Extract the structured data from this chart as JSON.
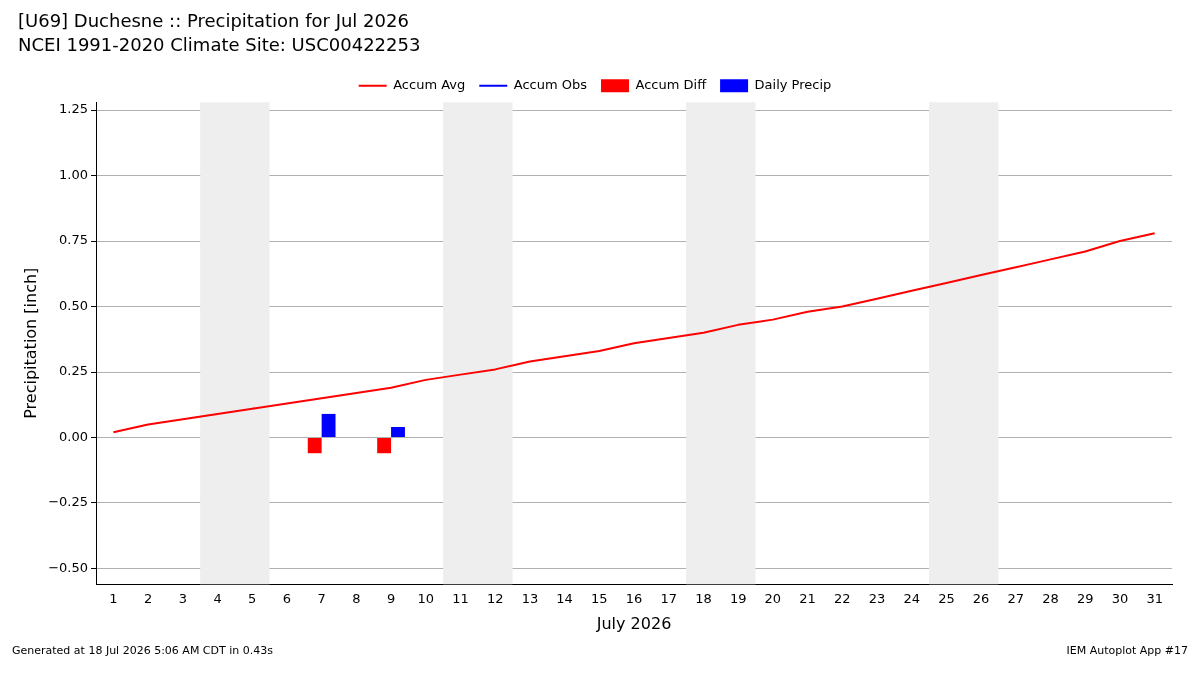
{
  "chart_data": {
    "type": "line",
    "title": "[U69] Duchesne :: Precipitation for Jul 2026",
    "subtitle": "NCEI 1991-2020 Climate Site: USC00422253",
    "xlabel": "July 2026",
    "ylabel": "Precipitation [inch]",
    "x": [
      1,
      2,
      3,
      4,
      5,
      6,
      7,
      8,
      9,
      10,
      11,
      12,
      13,
      14,
      15,
      16,
      17,
      18,
      19,
      20,
      21,
      22,
      23,
      24,
      25,
      26,
      27,
      28,
      29,
      30,
      31
    ],
    "series": [
      {
        "name": "Accum Avg",
        "color": "#ff0000",
        "values": [
          0.02,
          0.05,
          0.07,
          0.09,
          0.11,
          0.13,
          0.15,
          0.17,
          0.19,
          0.22,
          0.24,
          0.26,
          0.29,
          0.31,
          0.33,
          0.36,
          0.38,
          0.4,
          0.43,
          0.45,
          0.48,
          0.5,
          0.53,
          0.56,
          0.59,
          0.62,
          0.65,
          0.68,
          0.71,
          0.75,
          0.78
        ]
      },
      {
        "name": "Accum Obs",
        "color": "#0000ff",
        "values": [
          null,
          null,
          null,
          null,
          null,
          null,
          null,
          null,
          null,
          null,
          null,
          null,
          null,
          null,
          null,
          null,
          null,
          null,
          null,
          null,
          null,
          null,
          null,
          null,
          null,
          null,
          null,
          null,
          null,
          null,
          null
        ]
      },
      {
        "name": "Accum Diff",
        "type": "bar",
        "color": "#ff0000",
        "values": [
          null,
          null,
          null,
          null,
          null,
          null,
          -0.06,
          null,
          -0.06,
          null,
          null,
          null,
          null,
          null,
          null,
          null,
          null,
          null,
          null,
          null,
          null,
          null,
          null,
          null,
          null,
          null,
          null,
          null,
          null,
          null,
          null
        ]
      },
      {
        "name": "Daily Precip",
        "type": "bar",
        "color": "#0000ff",
        "values": [
          null,
          null,
          null,
          null,
          null,
          null,
          0.09,
          null,
          0.04,
          null,
          null,
          null,
          null,
          null,
          null,
          null,
          null,
          null,
          null,
          null,
          null,
          null,
          null,
          null,
          null,
          null,
          null,
          null,
          null,
          null,
          null
        ]
      }
    ],
    "xlim": [
      0.5,
      31.5
    ],
    "xticks": [
      1,
      2,
      3,
      4,
      5,
      6,
      7,
      8,
      9,
      10,
      11,
      12,
      13,
      14,
      15,
      16,
      17,
      18,
      19,
      20,
      21,
      22,
      23,
      24,
      25,
      26,
      27,
      28,
      29,
      30,
      31
    ],
    "ylim": [
      -0.56,
      1.28
    ],
    "yticks": [
      {
        "value": -0.5,
        "label": "−0.50"
      },
      {
        "value": -0.25,
        "label": "−0.25"
      },
      {
        "value": 0,
        "label": "0.00"
      },
      {
        "value": 0.25,
        "label": "0.25"
      },
      {
        "value": 0.5,
        "label": "0.50"
      },
      {
        "value": 0.75,
        "label": "0.75"
      },
      {
        "value": 1,
        "label": "1.00"
      },
      {
        "value": 1.25,
        "label": "1.25"
      }
    ],
    "bands": [
      {
        "axis": "x",
        "from": 3.5,
        "to": 5.5,
        "color": "#eeeeee"
      },
      {
        "axis": "x",
        "from": 10.5,
        "to": 12.5,
        "color": "#eeeeee"
      },
      {
        "axis": "x",
        "from": 17.5,
        "to": 19.5,
        "color": "#eeeeee"
      },
      {
        "axis": "x",
        "from": 24.5,
        "to": 26.5,
        "color": "#eeeeee"
      }
    ],
    "grid": "y",
    "legend": "top",
    "annotations": [
      "Generated at 18 Jul 2026 5:06 AM CDT in 0.43s",
      "IEM Autoplot App #17"
    ]
  }
}
